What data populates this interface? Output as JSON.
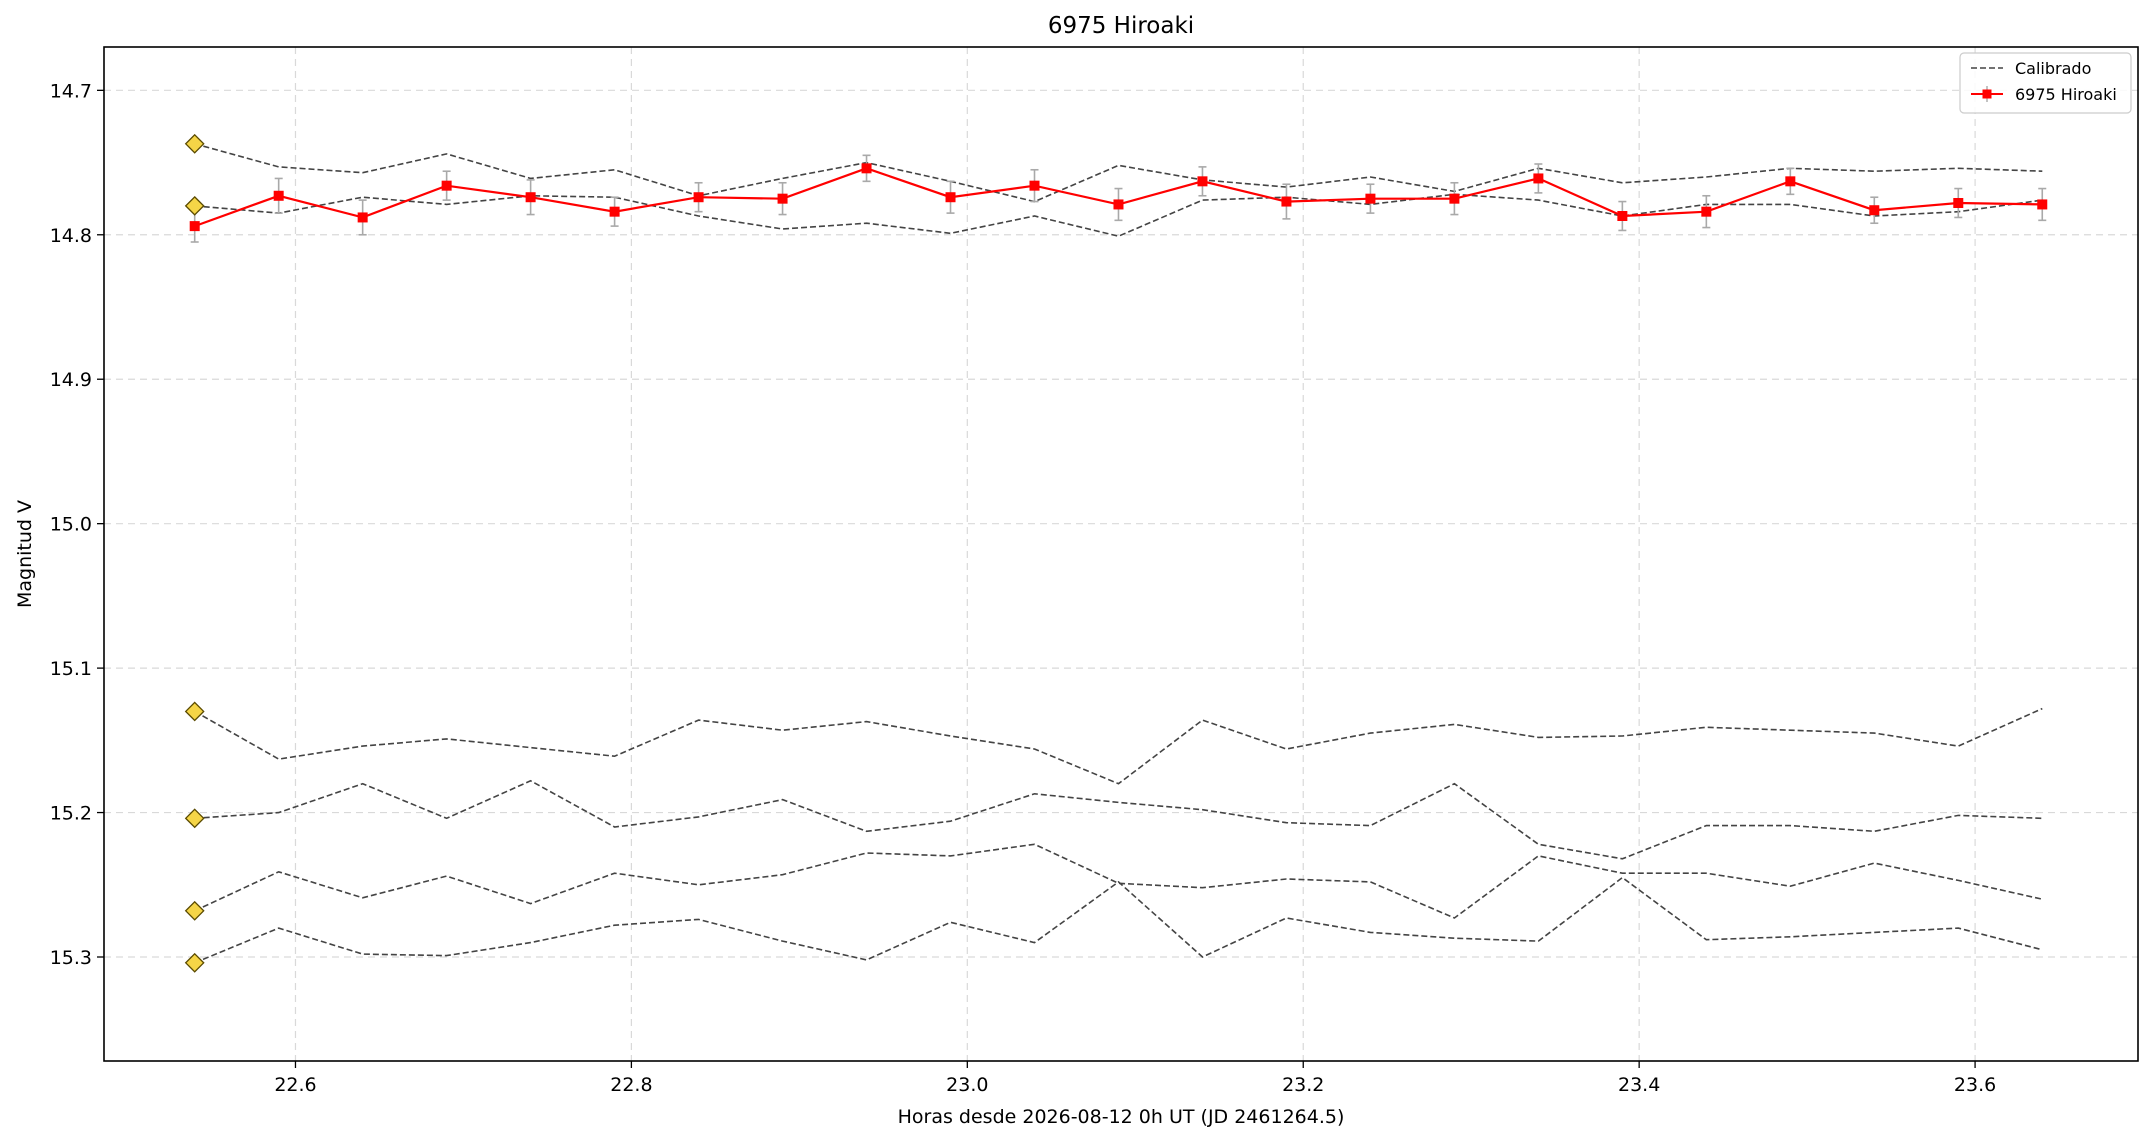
{
  "chart_data": {
    "type": "line",
    "title": "6975 Hiroaki",
    "xlabel": "Horas desde 2026-08-12 0h UT (JD 2461264.5)",
    "ylabel": "Magnitud V",
    "xlim": [
      22.486,
      23.697
    ],
    "ylim": [
      15.372,
      14.67
    ],
    "y_inverted": true,
    "grid": true,
    "legend_position": "top-right",
    "x_ticks": [
      22.6,
      22.8,
      23.0,
      23.2,
      23.4,
      23.6
    ],
    "x_tick_labels": [
      "22.6",
      "22.8",
      "23.0",
      "23.2",
      "23.4",
      "23.6"
    ],
    "y_ticks": [
      14.7,
      14.8,
      14.9,
      15.0,
      15.1,
      15.2,
      15.3
    ],
    "y_tick_labels": [
      "14.7",
      "14.8",
      "14.9",
      "15.0",
      "15.1",
      "15.2",
      "15.3"
    ],
    "x": [
      22.54,
      22.59,
      22.64,
      22.69,
      22.74,
      22.79,
      22.84,
      22.89,
      22.94,
      22.99,
      23.04,
      23.09,
      23.14,
      23.19,
      23.24,
      23.29,
      23.34,
      23.39,
      23.44,
      23.49,
      23.54,
      23.59,
      23.64
    ],
    "legend": {
      "calibrated_label": "Calibrado",
      "target_label": "6975 Hiroaki"
    },
    "colors": {
      "target": "#ff0000",
      "calibrated": "#444444",
      "errorbar": "#a9a9a9",
      "marker_fill": "#f5d547",
      "marker_edge": "#5a4a00",
      "grid": "#d9d9d9"
    },
    "target_series": {
      "name": "6975 Hiroaki",
      "y": [
        14.794,
        14.773,
        14.788,
        14.766,
        14.774,
        14.784,
        14.774,
        14.775,
        14.754,
        14.774,
        14.766,
        14.779,
        14.763,
        14.777,
        14.775,
        14.775,
        14.761,
        14.787,
        14.784,
        14.763,
        14.783,
        14.778,
        14.779
      ],
      "yerr": [
        0.011,
        0.012,
        0.012,
        0.01,
        0.012,
        0.01,
        0.01,
        0.011,
        0.009,
        0.011,
        0.011,
        0.011,
        0.01,
        0.012,
        0.01,
        0.011,
        0.01,
        0.01,
        0.011,
        0.009,
        0.009,
        0.01,
        0.011
      ]
    },
    "calibrated_series": [
      {
        "y": [
          14.737,
          14.753,
          14.757,
          14.744,
          14.761,
          14.755,
          14.773,
          14.761,
          14.75,
          14.763,
          14.777,
          14.752,
          14.762,
          14.767,
          14.76,
          14.77,
          14.754,
          14.764,
          14.76,
          14.754,
          14.756,
          14.754,
          14.756
        ]
      },
      {
        "y": [
          14.78,
          14.785,
          14.774,
          14.779,
          14.773,
          14.774,
          14.787,
          14.796,
          14.792,
          14.799,
          14.787,
          14.801,
          14.776,
          14.774,
          14.779,
          14.772,
          14.776,
          14.787,
          14.779,
          14.779,
          14.787,
          14.784,
          14.776
        ]
      },
      {
        "y": [
          15.13,
          15.163,
          15.154,
          15.149,
          15.155,
          15.161,
          15.136,
          15.143,
          15.137,
          15.147,
          15.156,
          15.18,
          15.136,
          15.156,
          15.145,
          15.139,
          15.148,
          15.147,
          15.141,
          15.143,
          15.145,
          15.154,
          15.128
        ]
      },
      {
        "y": [
          15.204,
          15.2,
          15.18,
          15.204,
          15.178,
          15.21,
          15.203,
          15.191,
          15.213,
          15.206,
          15.187,
          15.193,
          15.198,
          15.207,
          15.209,
          15.18,
          15.222,
          15.232,
          15.209,
          15.209,
          15.213,
          15.202,
          15.204
        ]
      },
      {
        "y": [
          15.268,
          15.241,
          15.259,
          15.244,
          15.263,
          15.242,
          15.25,
          15.243,
          15.228,
          15.23,
          15.222,
          15.249,
          15.252,
          15.246,
          15.248,
          15.273,
          15.23,
          15.242,
          15.242,
          15.251,
          15.235,
          15.247,
          15.26
        ]
      },
      {
        "y": [
          15.304,
          15.28,
          15.298,
          15.299,
          15.29,
          15.278,
          15.274,
          15.289,
          15.302,
          15.276,
          15.29,
          15.248,
          15.3,
          15.273,
          15.283,
          15.287,
          15.289,
          15.245,
          15.288,
          15.286,
          15.283,
          15.28,
          15.295
        ]
      }
    ],
    "start_markers": [
      14.737,
      14.78,
      15.13,
      15.204,
      15.268,
      15.304
    ]
  }
}
